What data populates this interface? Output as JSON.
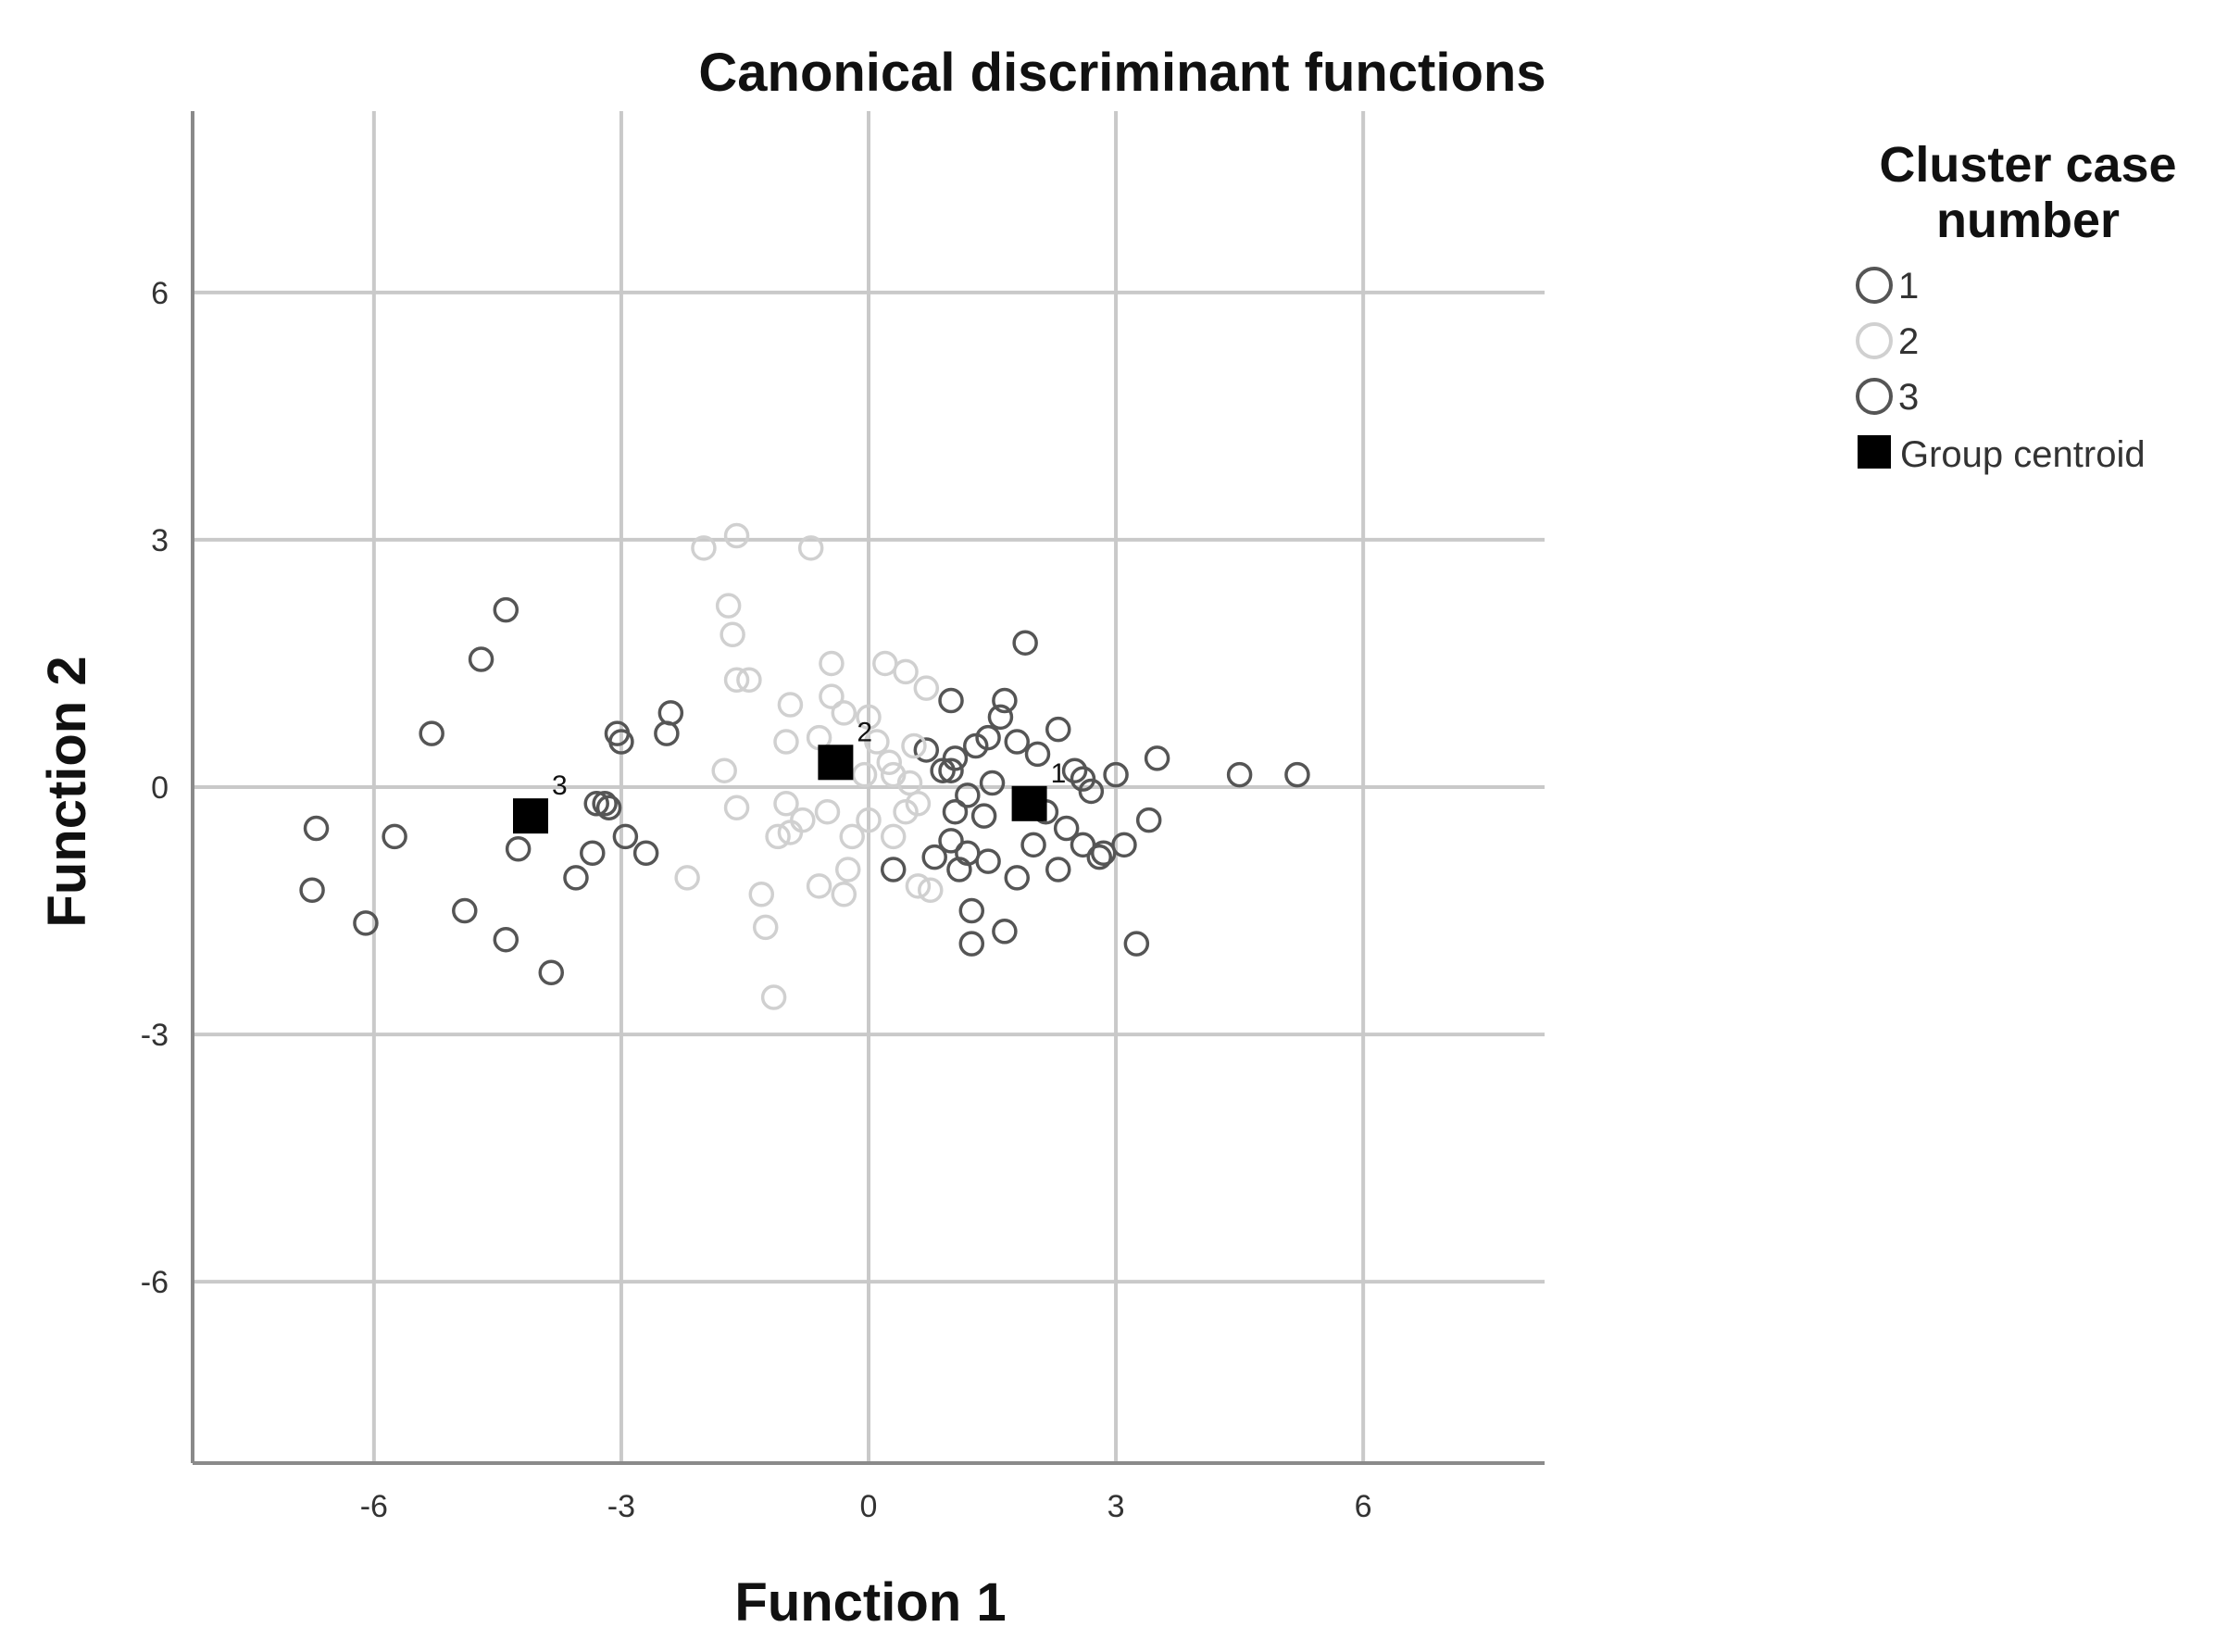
{
  "chart_data": {
    "type": "scatter",
    "title": "Canonical discriminant functions",
    "xlabel": "Function 1",
    "ylabel": "Function 2",
    "xlim": [
      -8.2,
      8.2
    ],
    "ylim": [
      -8.2,
      8.2
    ],
    "xticks": [
      -6,
      -3,
      0,
      3,
      6
    ],
    "yticks": [
      -6,
      -3,
      0,
      3,
      6
    ],
    "xtick_labels": [
      "-6",
      "-3",
      "0",
      "3",
      "6"
    ],
    "ytick_labels": [
      "-6",
      "-3",
      "0",
      "3",
      "6"
    ],
    "grid": true,
    "legend": {
      "title": "Cluster case number",
      "title_lines": [
        "Cluster case",
        "number"
      ],
      "placement": "right",
      "entries": [
        "1",
        "2",
        "3",
        "Group centroid"
      ]
    },
    "series": [
      {
        "name": "1",
        "color": "#555555",
        "points": [
          [
            1.0,
            1.05
          ],
          [
            1.65,
            1.05
          ],
          [
            1.9,
            1.75
          ],
          [
            2.3,
            0.7
          ],
          [
            2.5,
            0.2
          ],
          [
            2.6,
            0.1
          ],
          [
            3.0,
            0.15
          ],
          [
            3.5,
            0.35
          ],
          [
            4.5,
            0.15
          ],
          [
            5.2,
            0.15
          ],
          [
            0.9,
            0.2
          ],
          [
            1.05,
            0.35
          ],
          [
            1.3,
            0.5
          ],
          [
            1.45,
            0.6
          ],
          [
            1.6,
            0.85
          ],
          [
            1.8,
            0.55
          ],
          [
            2.05,
            0.4
          ],
          [
            1.0,
            0.2
          ],
          [
            1.2,
            -0.1
          ],
          [
            1.4,
            -0.35
          ],
          [
            1.0,
            -0.65
          ],
          [
            1.2,
            -0.8
          ],
          [
            1.45,
            -0.9
          ],
          [
            1.8,
            -1.1
          ],
          [
            2.3,
            -1.0
          ],
          [
            2.6,
            -0.7
          ],
          [
            2.8,
            -0.85
          ],
          [
            3.1,
            -0.7
          ],
          [
            3.4,
            -0.4
          ],
          [
            3.25,
            -1.9
          ],
          [
            1.25,
            -1.5
          ],
          [
            1.25,
            -1.9
          ],
          [
            1.65,
            -1.75
          ],
          [
            2.0,
            -0.7
          ],
          [
            2.4,
            -0.5
          ],
          [
            2.7,
            -0.05
          ],
          [
            0.8,
            -0.85
          ],
          [
            1.05,
            -0.3
          ],
          [
            0.3,
            -1.0
          ],
          [
            0.7,
            0.45
          ],
          [
            1.1,
            -1.0
          ],
          [
            2.85,
            -0.8
          ],
          [
            1.5,
            0.05
          ],
          [
            2.15,
            -0.3
          ]
        ]
      },
      {
        "name": "2",
        "color": "#d0d0d0",
        "points": [
          [
            -2.0,
            2.9
          ],
          [
            -1.6,
            3.05
          ],
          [
            -0.7,
            2.9
          ],
          [
            -1.7,
            2.2
          ],
          [
            -1.65,
            1.85
          ],
          [
            -1.6,
            1.3
          ],
          [
            -1.45,
            1.3
          ],
          [
            -0.45,
            1.5
          ],
          [
            0.2,
            1.5
          ],
          [
            0.45,
            1.4
          ],
          [
            0.7,
            1.2
          ],
          [
            -0.95,
            1.0
          ],
          [
            -0.45,
            1.1
          ],
          [
            -0.3,
            0.9
          ],
          [
            -0.6,
            0.6
          ],
          [
            -1.0,
            0.55
          ],
          [
            0.0,
            0.85
          ],
          [
            0.55,
            0.5
          ],
          [
            -0.05,
            0.15
          ],
          [
            0.25,
            0.3
          ],
          [
            0.5,
            0.05
          ],
          [
            -1.75,
            0.2
          ],
          [
            -1.6,
            -0.25
          ],
          [
            -1.0,
            -0.2
          ],
          [
            -0.8,
            -0.4
          ],
          [
            -1.1,
            -0.6
          ],
          [
            -0.95,
            -0.55
          ],
          [
            -0.5,
            -0.3
          ],
          [
            -0.25,
            -1.0
          ],
          [
            -0.6,
            -1.2
          ],
          [
            -0.3,
            -1.3
          ],
          [
            -1.3,
            -1.3
          ],
          [
            -1.25,
            -1.7
          ],
          [
            -1.15,
            -2.55
          ],
          [
            -2.2,
            -1.1
          ],
          [
            0.0,
            -0.4
          ],
          [
            0.3,
            -0.6
          ],
          [
            0.45,
            -0.3
          ],
          [
            0.6,
            -1.2
          ],
          [
            0.75,
            -1.25
          ],
          [
            0.1,
            0.55
          ],
          [
            0.3,
            0.15
          ],
          [
            -0.2,
            -0.6
          ],
          [
            0.6,
            -0.2
          ]
        ]
      },
      {
        "name": "3",
        "color": "#555555",
        "points": [
          [
            -4.4,
            2.15
          ],
          [
            -4.7,
            1.55
          ],
          [
            -5.3,
            0.65
          ],
          [
            -2.4,
            0.9
          ],
          [
            -2.45,
            0.65
          ],
          [
            -3.05,
            0.65
          ],
          [
            -3.0,
            0.55
          ],
          [
            -3.3,
            -0.2
          ],
          [
            -3.2,
            -0.2
          ],
          [
            -3.15,
            -0.25
          ],
          [
            -2.95,
            -0.6
          ],
          [
            -2.7,
            -0.8
          ],
          [
            -3.35,
            -0.8
          ],
          [
            -3.55,
            -1.1
          ],
          [
            -4.25,
            -0.75
          ],
          [
            -4.4,
            -1.85
          ],
          [
            -3.85,
            -2.25
          ],
          [
            -4.9,
            -1.5
          ],
          [
            -5.75,
            -0.6
          ],
          [
            -6.1,
            -1.65
          ],
          [
            -6.7,
            -0.5
          ],
          [
            -6.75,
            -1.25
          ]
        ]
      }
    ],
    "centroids": [
      {
        "label": "1",
        "x": 1.95,
        "y": -0.2
      },
      {
        "label": "2",
        "x": -0.4,
        "y": 0.3
      },
      {
        "label": "3",
        "x": -4.1,
        "y": -0.35
      }
    ]
  }
}
